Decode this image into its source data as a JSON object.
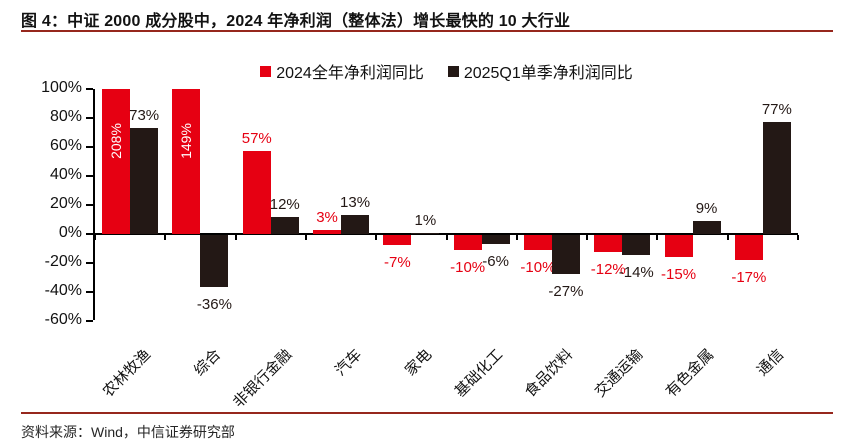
{
  "figure": {
    "title": "图 4：中证 2000 成分股中，2024 年净利润（整体法）增长最快的 10 大行业",
    "source": "资料来源：Wind，中信证券研究部"
  },
  "colors": {
    "series_2024": "#e60012",
    "series_2025q1": "#231815",
    "divider_rule": "#96271d",
    "axis": "#000000",
    "in_bar_label": "#ffffff"
  },
  "chart_data": {
    "type": "bar",
    "title": "",
    "xlabel": "",
    "ylabel": "",
    "categories": [
      "农林牧渔",
      "综合",
      "非银行金融",
      "汽车",
      "家电",
      "基础化工",
      "食品饮料",
      "交通运输",
      "有色金属",
      "通信"
    ],
    "series": [
      {
        "name": "2024全年净利润同比",
        "color": "#e60012",
        "values": [
          208,
          149,
          57,
          3,
          -7,
          -10,
          -10,
          -12,
          -15,
          -17
        ],
        "labels": [
          "208%",
          "149%",
          "57%",
          "3%",
          "-7%",
          "-10%",
          "-10%",
          "-12%",
          "-15%",
          "-17%"
        ]
      },
      {
        "name": "2025Q1单季净利润同比",
        "color": "#231815",
        "values": [
          73,
          -36,
          12,
          13,
          1,
          -6,
          -27,
          -14,
          9,
          77
        ],
        "labels": [
          "73%",
          "-36%",
          "12%",
          "13%",
          "1%",
          "-6%",
          "-27%",
          "-14%",
          "9%",
          "77%"
        ]
      }
    ],
    "ylim": [
      -60,
      100
    ],
    "yticks": [
      100,
      80,
      60,
      40,
      20,
      0,
      -20,
      -40,
      -60
    ],
    "ytick_labels": [
      "100%",
      "80%",
      "60%",
      "40%",
      "20%",
      "0%",
      "-20%",
      "-40%",
      "-60%"
    ],
    "clip_max": 100,
    "grid": false,
    "legend_position": "top-center",
    "value_suffix": "%",
    "bar_labels_outside_color_follows_series": true
  }
}
